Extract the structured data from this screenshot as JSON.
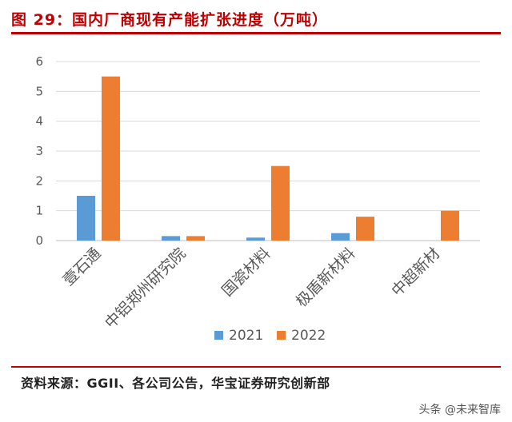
{
  "header": {
    "title": "图 29：国内厂商现有产能扩张进度（万吨）"
  },
  "footer": {
    "source": "资料来源：GGII、各公司公告，华宝证券研究创新部",
    "watermark": "头条 @未来智库"
  },
  "colors": {
    "accent": "#c00000",
    "series_2021": "#5b9bd5",
    "series_2022": "#ed7d31",
    "grid": "#d9d9d9"
  },
  "chart_data": {
    "type": "bar",
    "categories": [
      "壹石通",
      "中铝郑州研究院",
      "国瓷材料",
      "极盾新材料",
      "中超新材"
    ],
    "series": [
      {
        "name": "2021",
        "values": [
          1.5,
          0.15,
          0.1,
          0.25,
          0
        ]
      },
      {
        "name": "2022",
        "values": [
          5.5,
          0.15,
          2.5,
          0.8,
          1.0
        ]
      }
    ],
    "ylim": [
      0,
      6
    ],
    "yticks": [
      "0",
      "1",
      "2",
      "3",
      "4",
      "5",
      "6"
    ],
    "grid": true,
    "legend_position": "bottom"
  }
}
